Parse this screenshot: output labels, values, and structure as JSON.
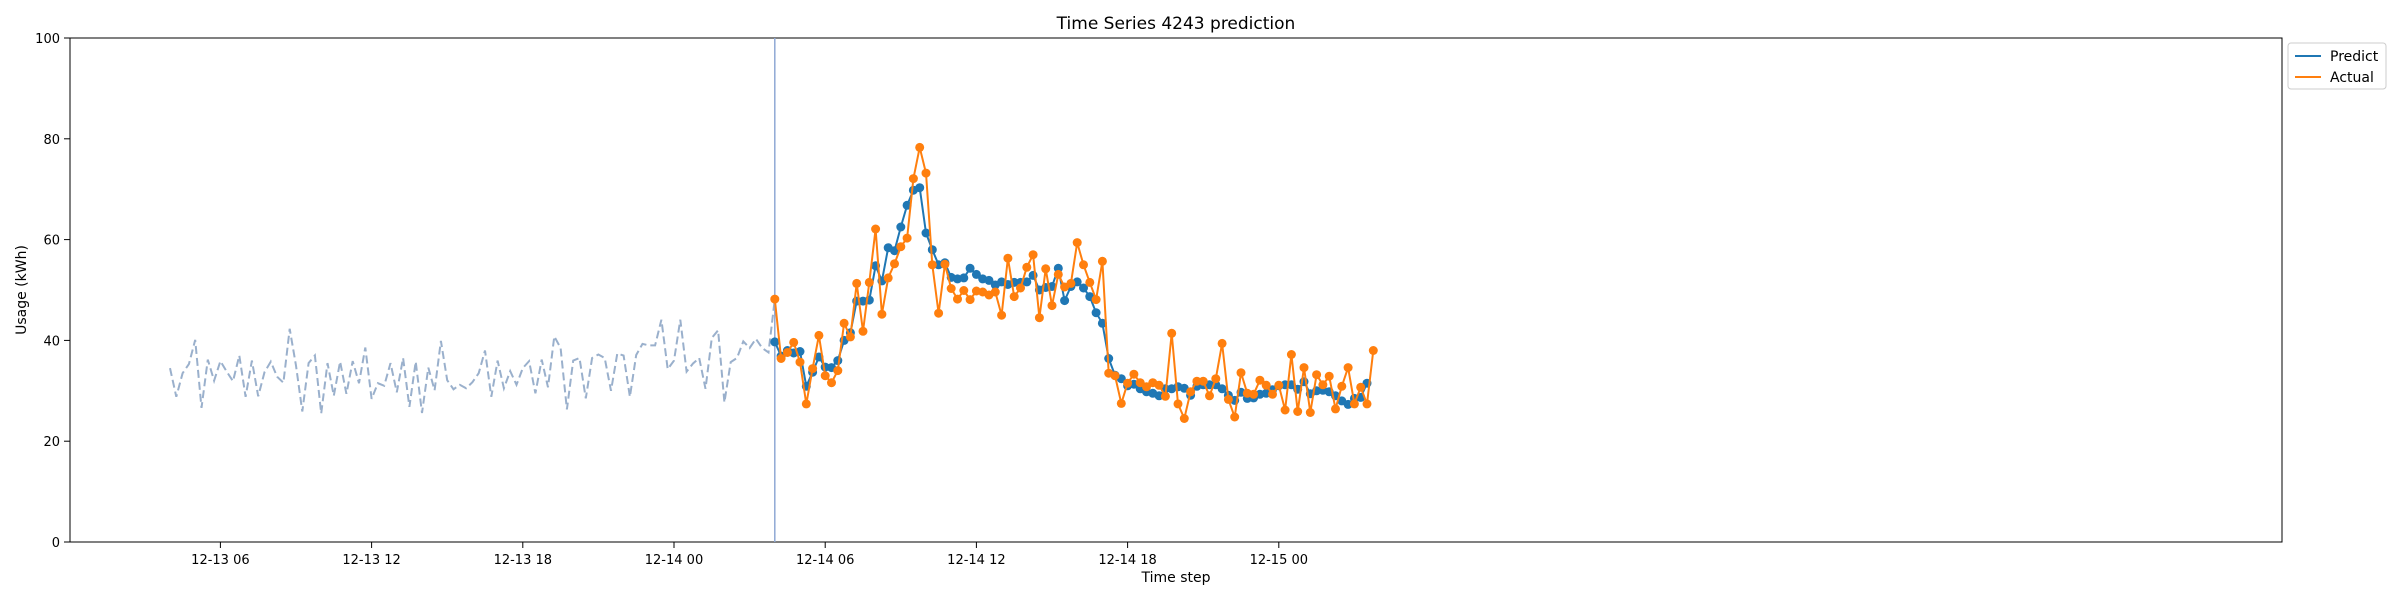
{
  "chart_data": {
    "type": "line",
    "title": "Time Series 4243 prediction",
    "xlabel": "Time step",
    "ylabel": "Usage (kWh)",
    "ylim": [
      0,
      100
    ],
    "yticks": [
      0,
      20,
      40,
      60,
      80,
      100
    ],
    "x_start": "12-13 04:00",
    "x_step_minutes": 15,
    "xticks": [
      {
        "label": "12-13 06",
        "step": 8
      },
      {
        "label": "12-13 12",
        "step": 32
      },
      {
        "label": "12-13 18",
        "step": 56
      },
      {
        "label": "12-14 00",
        "step": 80
      },
      {
        "label": "12-14 06",
        "step": 104
      },
      {
        "label": "12-14 12",
        "step": 128
      },
      {
        "label": "12-14 18",
        "step": 152
      },
      {
        "label": "12-15 00",
        "step": 176
      }
    ],
    "forecast_start_step": 96,
    "history": [
      34.5,
      28.8,
      33.5,
      35.3,
      40.1,
      26.6,
      36.2,
      32.0,
      35.9,
      33.8,
      31.9,
      37.0,
      28.8,
      36.0,
      28.9,
      33.7,
      35.8,
      32.8,
      31.6,
      42.3,
      35.0,
      25.9,
      35.5,
      37.0,
      25.5,
      35.5,
      29.0,
      35.8,
      29.4,
      35.9,
      31.5,
      38.6,
      28.4,
      31.5,
      31.0,
      35.5,
      29.7,
      36.5,
      26.8,
      35.8,
      25.6,
      34.6,
      30.1,
      39.9,
      32.1,
      30.3,
      31.2,
      30.5,
      31.7,
      33.5,
      38.0,
      28.8,
      36.0,
      30.5,
      33.9,
      31.2,
      34.5,
      35.9,
      29.5,
      36.2,
      30.7,
      40.8,
      38.5,
      26.3,
      36.0,
      36.5,
      28.5,
      36.5,
      37.2,
      36.5,
      30.0,
      37.4,
      37.0,
      28.8,
      37.1,
      39.3,
      39.0,
      39.0,
      44.1,
      34.3,
      36.0,
      44.1,
      33.8,
      35.4,
      36.5,
      30.4,
      40.5,
      42.0,
      27.7,
      35.7,
      36.5,
      39.8,
      38.5,
      40.3,
      38.5,
      37.6,
      48.2
    ],
    "series": [
      {
        "name": "Predict",
        "color": "#1f77b4",
        "values": [
          39.7,
          36.9,
          38.0,
          37.5,
          37.8,
          30.9,
          33.7,
          36.7,
          34.7,
          34.6,
          36.0,
          40.0,
          41.5,
          47.8,
          47.8,
          48.0,
          54.8,
          51.8,
          58.4,
          57.8,
          62.5,
          66.8,
          69.8,
          70.3,
          61.3,
          58.0,
          55.0,
          55.4,
          52.5,
          52.2,
          52.4,
          54.3,
          53.1,
          52.2,
          51.9,
          51.0,
          51.6,
          51.1,
          51.5,
          51.5,
          51.6,
          52.9,
          50.0,
          50.5,
          50.7,
          54.3,
          47.9,
          50.7,
          51.6,
          50.4,
          48.7,
          45.5,
          43.4,
          36.4,
          33.1,
          32.4,
          31.0,
          31.3,
          30.4,
          29.8,
          29.5,
          29.0,
          30.4,
          30.4,
          30.8,
          30.5,
          29.1,
          30.9,
          31.2,
          31.2,
          31.2,
          30.4,
          29.1,
          28.1,
          29.7,
          28.5,
          28.6,
          29.3,
          29.5,
          30.2,
          31.0,
          31.2,
          31.2,
          30.3,
          31.8,
          29.4,
          30.0,
          30.1,
          29.8,
          29.0,
          28.0,
          27.3,
          28.5,
          28.7,
          31.5
        ]
      },
      {
        "name": "Actual",
        "color": "#ff7f0e",
        "values": [
          48.2,
          36.4,
          37.6,
          39.6,
          35.7,
          27.4,
          34.4,
          41.0,
          33.0,
          31.6,
          34.0,
          43.4,
          40.7,
          51.3,
          41.8,
          51.5,
          62.1,
          45.2,
          52.4,
          55.2,
          58.6,
          60.3,
          72.1,
          78.3,
          73.2,
          55.0,
          45.4,
          55.1,
          50.3,
          48.2,
          49.9,
          48.1,
          49.8,
          49.6,
          49.0,
          49.6,
          45.0,
          56.3,
          48.7,
          50.4,
          54.5,
          57.0,
          44.5,
          54.2,
          46.9,
          53.1,
          50.6,
          51.3,
          59.4,
          55.0,
          51.5,
          48.1,
          55.7,
          33.5,
          33.0,
          27.5,
          31.5,
          33.3,
          31.6,
          30.8,
          31.6,
          31.1,
          28.9,
          41.4,
          27.4,
          24.5,
          29.8,
          31.9,
          31.9,
          29.0,
          32.4,
          39.4,
          28.3,
          24.8,
          33.6,
          29.5,
          29.3,
          32.1,
          31.1,
          29.3,
          31.1,
          26.2,
          37.2,
          25.9,
          34.6,
          25.7,
          33.2,
          31.2,
          32.9,
          26.4,
          30.9,
          34.6,
          27.4,
          30.7,
          27.4,
          38.0
        ]
      }
    ],
    "legend": {
      "placement": "top-right, outside plot"
    },
    "history_color": "#9ab0cc",
    "vline_color": "#8fa8d4",
    "grid": false
  }
}
